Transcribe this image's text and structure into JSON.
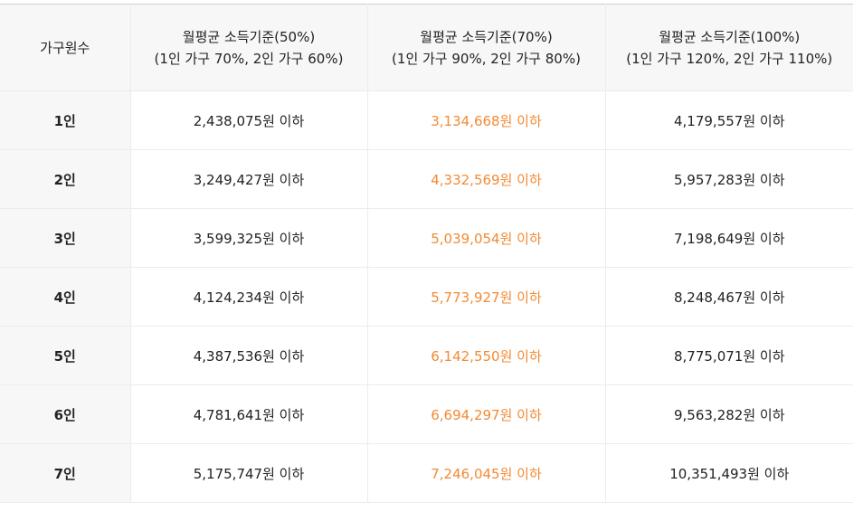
{
  "table": {
    "headers": [
      "가구원수",
      "월평균 소득기준(50%)\n(1인 가구 70%, 2인 가구 60%)",
      "월평균 소득기준(70%)\n(1인 가구 90%, 2인 가구 80%)",
      "월평균 소득기준(100%)\n(1인 가구 120%, 2인 가구 110%)"
    ],
    "rows": [
      [
        "1인",
        "2,438,075원 이하",
        "3,134,668원 이하",
        "4,179,557원 이하"
      ],
      [
        "2인",
        "3,249,427원 이하",
        "4,332,569원 이하",
        "5,957,283원 이하"
      ],
      [
        "3인",
        "3,599,325원 이하",
        "5,039,054원 이하",
        "7,198,649원 이하"
      ],
      [
        "4인",
        "4,124,234원 이하",
        "5,773,927원 이하",
        "8,248,467원 이하"
      ],
      [
        "5인",
        "4,387,536원 이하",
        "6,142,550원 이하",
        "8,775,071원 이하"
      ],
      [
        "6인",
        "4,781,641원 이하",
        "6,694,297원 이하",
        "9,563,282원 이하"
      ],
      [
        "7인",
        "5,175,747원 이하",
        "7,246,045원 이하",
        "10,351,493원 이하"
      ]
    ]
  },
  "colors": {
    "accent": "#f28a33",
    "header_bg": "#f7f7f7",
    "border": "#ececec",
    "text": "#222222"
  }
}
